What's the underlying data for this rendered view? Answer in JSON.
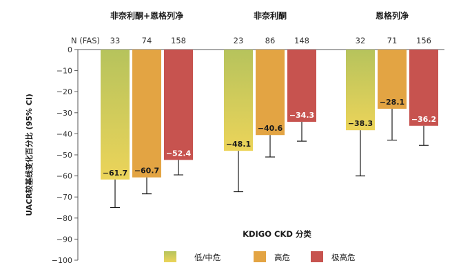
{
  "chart_data": {
    "type": "bar",
    "group_labels": [
      "非奈利酮+恩格列净",
      "非奈利酮",
      "恩格列净"
    ],
    "n_header": "N (FAS)",
    "ylabel": "UACR较基线变化百分比 (95% CI)",
    "xlabel": "KDIGO CKD 分类",
    "ylim": [
      -100,
      0
    ],
    "yticks": [
      0,
      -10,
      -20,
      -30,
      -40,
      -50,
      -60,
      -70,
      -80,
      -90,
      -100
    ],
    "series": [
      {
        "name": "低/中危",
        "color_top": "#b6c35c",
        "color_bottom": "#ecd45a",
        "label_color": "#1a1a1a",
        "values": [
          -61.7,
          -48.1,
          -38.3
        ],
        "ci_low": [
          -75,
          -67.5,
          -60
        ],
        "n": [
          "33",
          "23",
          "32"
        ],
        "labels": [
          "−61.7",
          "−48.1",
          "−38.3"
        ]
      },
      {
        "name": "高危",
        "color_top": "#e3a443",
        "color_bottom": "#e3a443",
        "label_color": "#1a1a1a",
        "values": [
          -60.7,
          -40.6,
          -28.1
        ],
        "ci_low": [
          -68.5,
          -51,
          -43
        ],
        "n": [
          "74",
          "86",
          "71"
        ],
        "labels": [
          "−60.7",
          "−40.6",
          "−28.1"
        ]
      },
      {
        "name": "极高危",
        "color_top": "#c7534f",
        "color_bottom": "#c7534f",
        "label_color": "#ffffff",
        "values": [
          -52.4,
          -34.3,
          -36.2
        ],
        "ci_low": [
          -59.5,
          -43.5,
          -45.5
        ],
        "n": [
          "158",
          "148",
          "156"
        ],
        "labels": [
          "−52.4",
          "−34.3",
          "−36.2"
        ]
      }
    ],
    "legend_position": "bottom"
  }
}
